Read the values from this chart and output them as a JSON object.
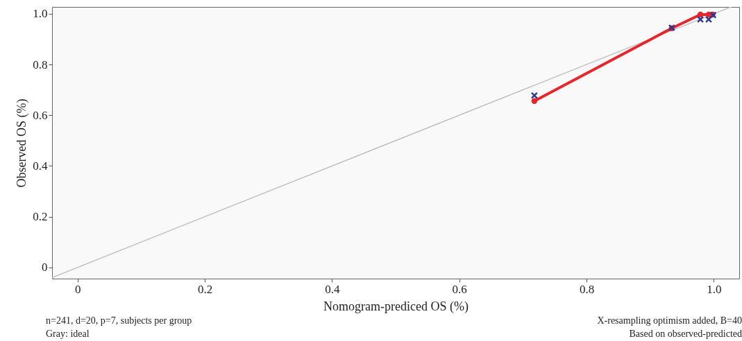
{
  "chart_data": {
    "type": "line",
    "xlabel": "Nomogram-prediced OS (%)",
    "ylabel": "Observed OS (%)",
    "xlim": [
      -0.04,
      1.04
    ],
    "ylim": [
      -0.044,
      1.027
    ],
    "xticks": [
      0,
      0.2,
      0.4,
      0.6,
      0.8,
      {
        "value": 1,
        "label": "1.0"
      }
    ],
    "yticks": [
      0,
      0.2,
      0.4,
      0.6,
      0.8,
      {
        "value": 1,
        "label": "1.0"
      }
    ],
    "grid": false,
    "series": [
      {
        "color": "#c0c0c0",
        "marker": "none",
        "x": [
          -0.04,
          1.027
        ],
        "values": [
          -0.04,
          1.027
        ]
      },
      {
        "color": "#e8252a",
        "marker": "circle",
        "x": [
          0.718,
          0.934,
          0.979,
          0.992,
          0.998
        ],
        "values": [
          0.656,
          0.943,
          0.997,
          0.997,
          0.997
        ]
      },
      {
        "type": "scatter",
        "color": "#2b3a8f",
        "marker": "cross",
        "x": [
          0.718,
          0.934,
          0.979,
          0.992,
          0.999
        ],
        "values": [
          0.678,
          0.945,
          0.978,
          0.978,
          0.995
        ]
      }
    ],
    "annotations": [
      "n=241, d=20, p=7, subjects per group",
      "Gray: ideal",
      "X-resampling optimism added, B=40",
      "Based on observed-predicted"
    ]
  }
}
